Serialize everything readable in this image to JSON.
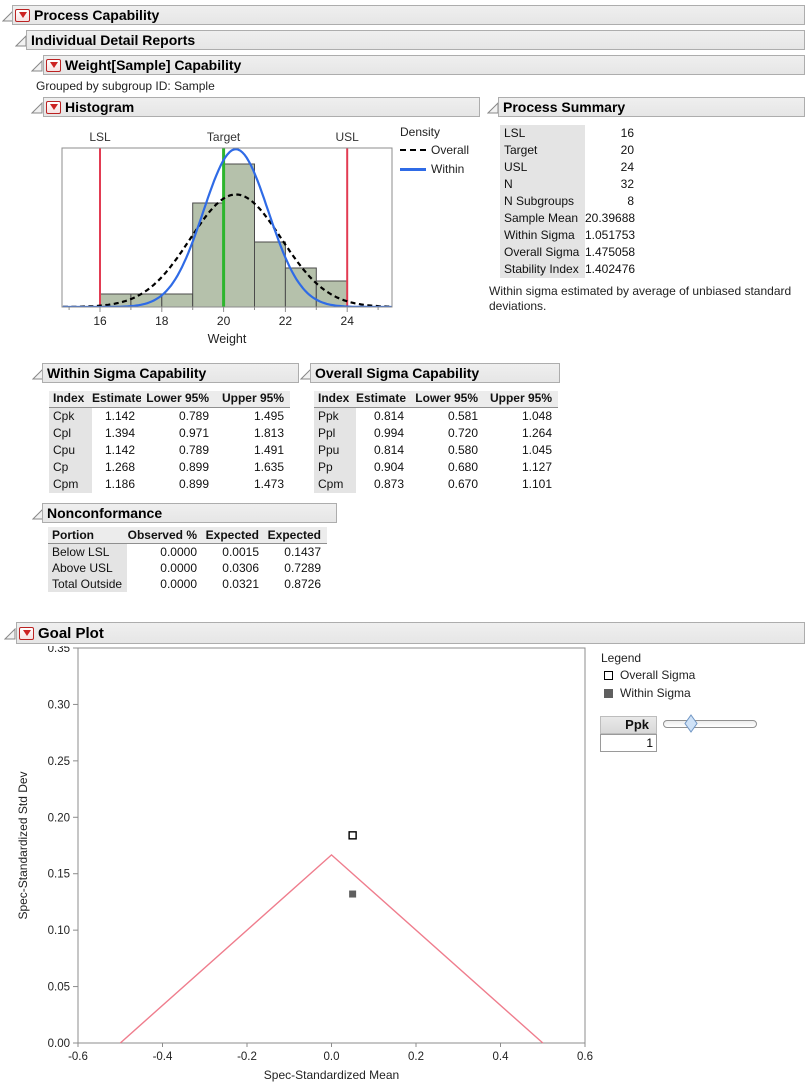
{
  "headers": {
    "process_capability": "Process Capability",
    "individual_detail_reports": "Individual Detail Reports",
    "weight_capability": "Weight[Sample] Capability",
    "grouped_by": "Grouped by subgroup ID: Sample",
    "histogram": "Histogram",
    "process_summary": "Process Summary",
    "within_sigma": "Within Sigma Capability",
    "overall_sigma": "Overall Sigma Capability",
    "nonconformance": "Nonconformance",
    "goal_plot": "Goal Plot"
  },
  "process_summary_table": {
    "rows": [
      [
        "LSL",
        "16"
      ],
      [
        "Target",
        "20"
      ],
      [
        "USL",
        "24"
      ],
      [
        "N",
        "32"
      ],
      [
        "N Subgroups",
        "8"
      ],
      [
        "Sample Mean",
        "20.39688"
      ],
      [
        "Within Sigma",
        "1.051753"
      ],
      [
        "Overall Sigma",
        "1.475058"
      ],
      [
        "Stability Index",
        "1.402476"
      ]
    ],
    "note": "Within sigma estimated by average of unbiased standard deviations."
  },
  "within_table": {
    "columns": [
      "Index",
      "Estimate",
      "Lower 95%",
      "Upper 95%"
    ],
    "rows": [
      [
        "Cpk",
        "1.142",
        "0.789",
        "1.495"
      ],
      [
        "Cpl",
        "1.394",
        "0.971",
        "1.813"
      ],
      [
        "Cpu",
        "1.142",
        "0.789",
        "1.491"
      ],
      [
        "Cp",
        "1.268",
        "0.899",
        "1.635"
      ],
      [
        "Cpm",
        "1.186",
        "0.899",
        "1.473"
      ]
    ]
  },
  "overall_table": {
    "columns": [
      "Index",
      "Estimate",
      "Lower 95%",
      "Upper 95%"
    ],
    "rows": [
      [
        "Ppk",
        "0.814",
        "0.581",
        "1.048"
      ],
      [
        "Ppl",
        "0.994",
        "0.720",
        "1.264"
      ],
      [
        "Ppu",
        "0.814",
        "0.580",
        "1.045"
      ],
      [
        "Pp",
        "0.904",
        "0.680",
        "1.127"
      ],
      [
        "Cpm",
        "0.873",
        "0.670",
        "1.101"
      ]
    ]
  },
  "nonconformance_table": {
    "columns": [
      "Portion",
      "Observed %",
      "Expected\nWithin %",
      "Expected\nOverall %"
    ],
    "rows": [
      [
        "Below LSL",
        "0.0000",
        "0.0015",
        "0.1437"
      ],
      [
        "Above USL",
        "0.0000",
        "0.0306",
        "0.7289"
      ],
      [
        "Total Outside",
        "0.0000",
        "0.0321",
        "0.8726"
      ]
    ]
  },
  "goal_plot_panel": {
    "legend_title": "Legend",
    "items": [
      {
        "label": "Overall Sigma",
        "marker": "open-square"
      },
      {
        "label": "Within Sigma",
        "marker": "filled-square"
      }
    ],
    "ppk_label": "Ppk",
    "ppk_value": "1"
  },
  "chart_data": [
    {
      "id": "histogram",
      "type": "histogram",
      "title": "Histogram",
      "xlabel": "Weight",
      "xlim": [
        14.8,
        25.45
      ],
      "x_major_ticks": [
        16,
        18,
        20,
        22,
        24
      ],
      "x_minor_ticks": [
        15,
        17,
        19,
        21,
        23,
        25
      ],
      "bin_start": 16,
      "bin_width": 1,
      "bin_counts": [
        1,
        1,
        1,
        8,
        11,
        5,
        3,
        2
      ],
      "n_total": 32,
      "bar_fill": "#b5c1ab",
      "bar_stroke": "#4a4a4a",
      "spec_lines": [
        {
          "label": "LSL",
          "value": 16,
          "color": "#e23b52"
        },
        {
          "label": "Target",
          "value": 20,
          "color": "#2db52d"
        },
        {
          "label": "USL",
          "value": 24,
          "color": "#e23b52"
        }
      ],
      "density_curves": [
        {
          "name": "Overall",
          "mean": 20.39688,
          "sigma": 1.475058,
          "line": "dashed",
          "color": "#000000"
        },
        {
          "name": "Within",
          "mean": 20.39688,
          "sigma": 1.051753,
          "line": "solid",
          "color": "#2f6be6"
        }
      ],
      "legend_title": "Density"
    },
    {
      "id": "goal_plot",
      "type": "scatter",
      "xlabel": "Spec-Standardized Mean",
      "ylabel": "Spec-Standardized Std Dev",
      "xlim": [
        -0.6,
        0.6
      ],
      "ylim": [
        0,
        0.35
      ],
      "x_ticks": [
        -0.6,
        -0.4,
        -0.2,
        0,
        0.2,
        0.4,
        0.6
      ],
      "y_ticks": [
        0,
        0.05,
        0.1,
        0.15,
        0.2,
        0.25,
        0.3,
        0.35
      ],
      "goal_line": {
        "points": [
          [
            -0.5,
            0
          ],
          [
            0,
            0.1667
          ],
          [
            0.5,
            0
          ]
        ],
        "color": "#ef7d8d"
      },
      "points": [
        {
          "name": "Overall Sigma",
          "x": 0.05,
          "y": 0.184,
          "marker": "open-square"
        },
        {
          "name": "Within Sigma",
          "x": 0.05,
          "y": 0.132,
          "marker": "filled-square"
        }
      ]
    }
  ]
}
